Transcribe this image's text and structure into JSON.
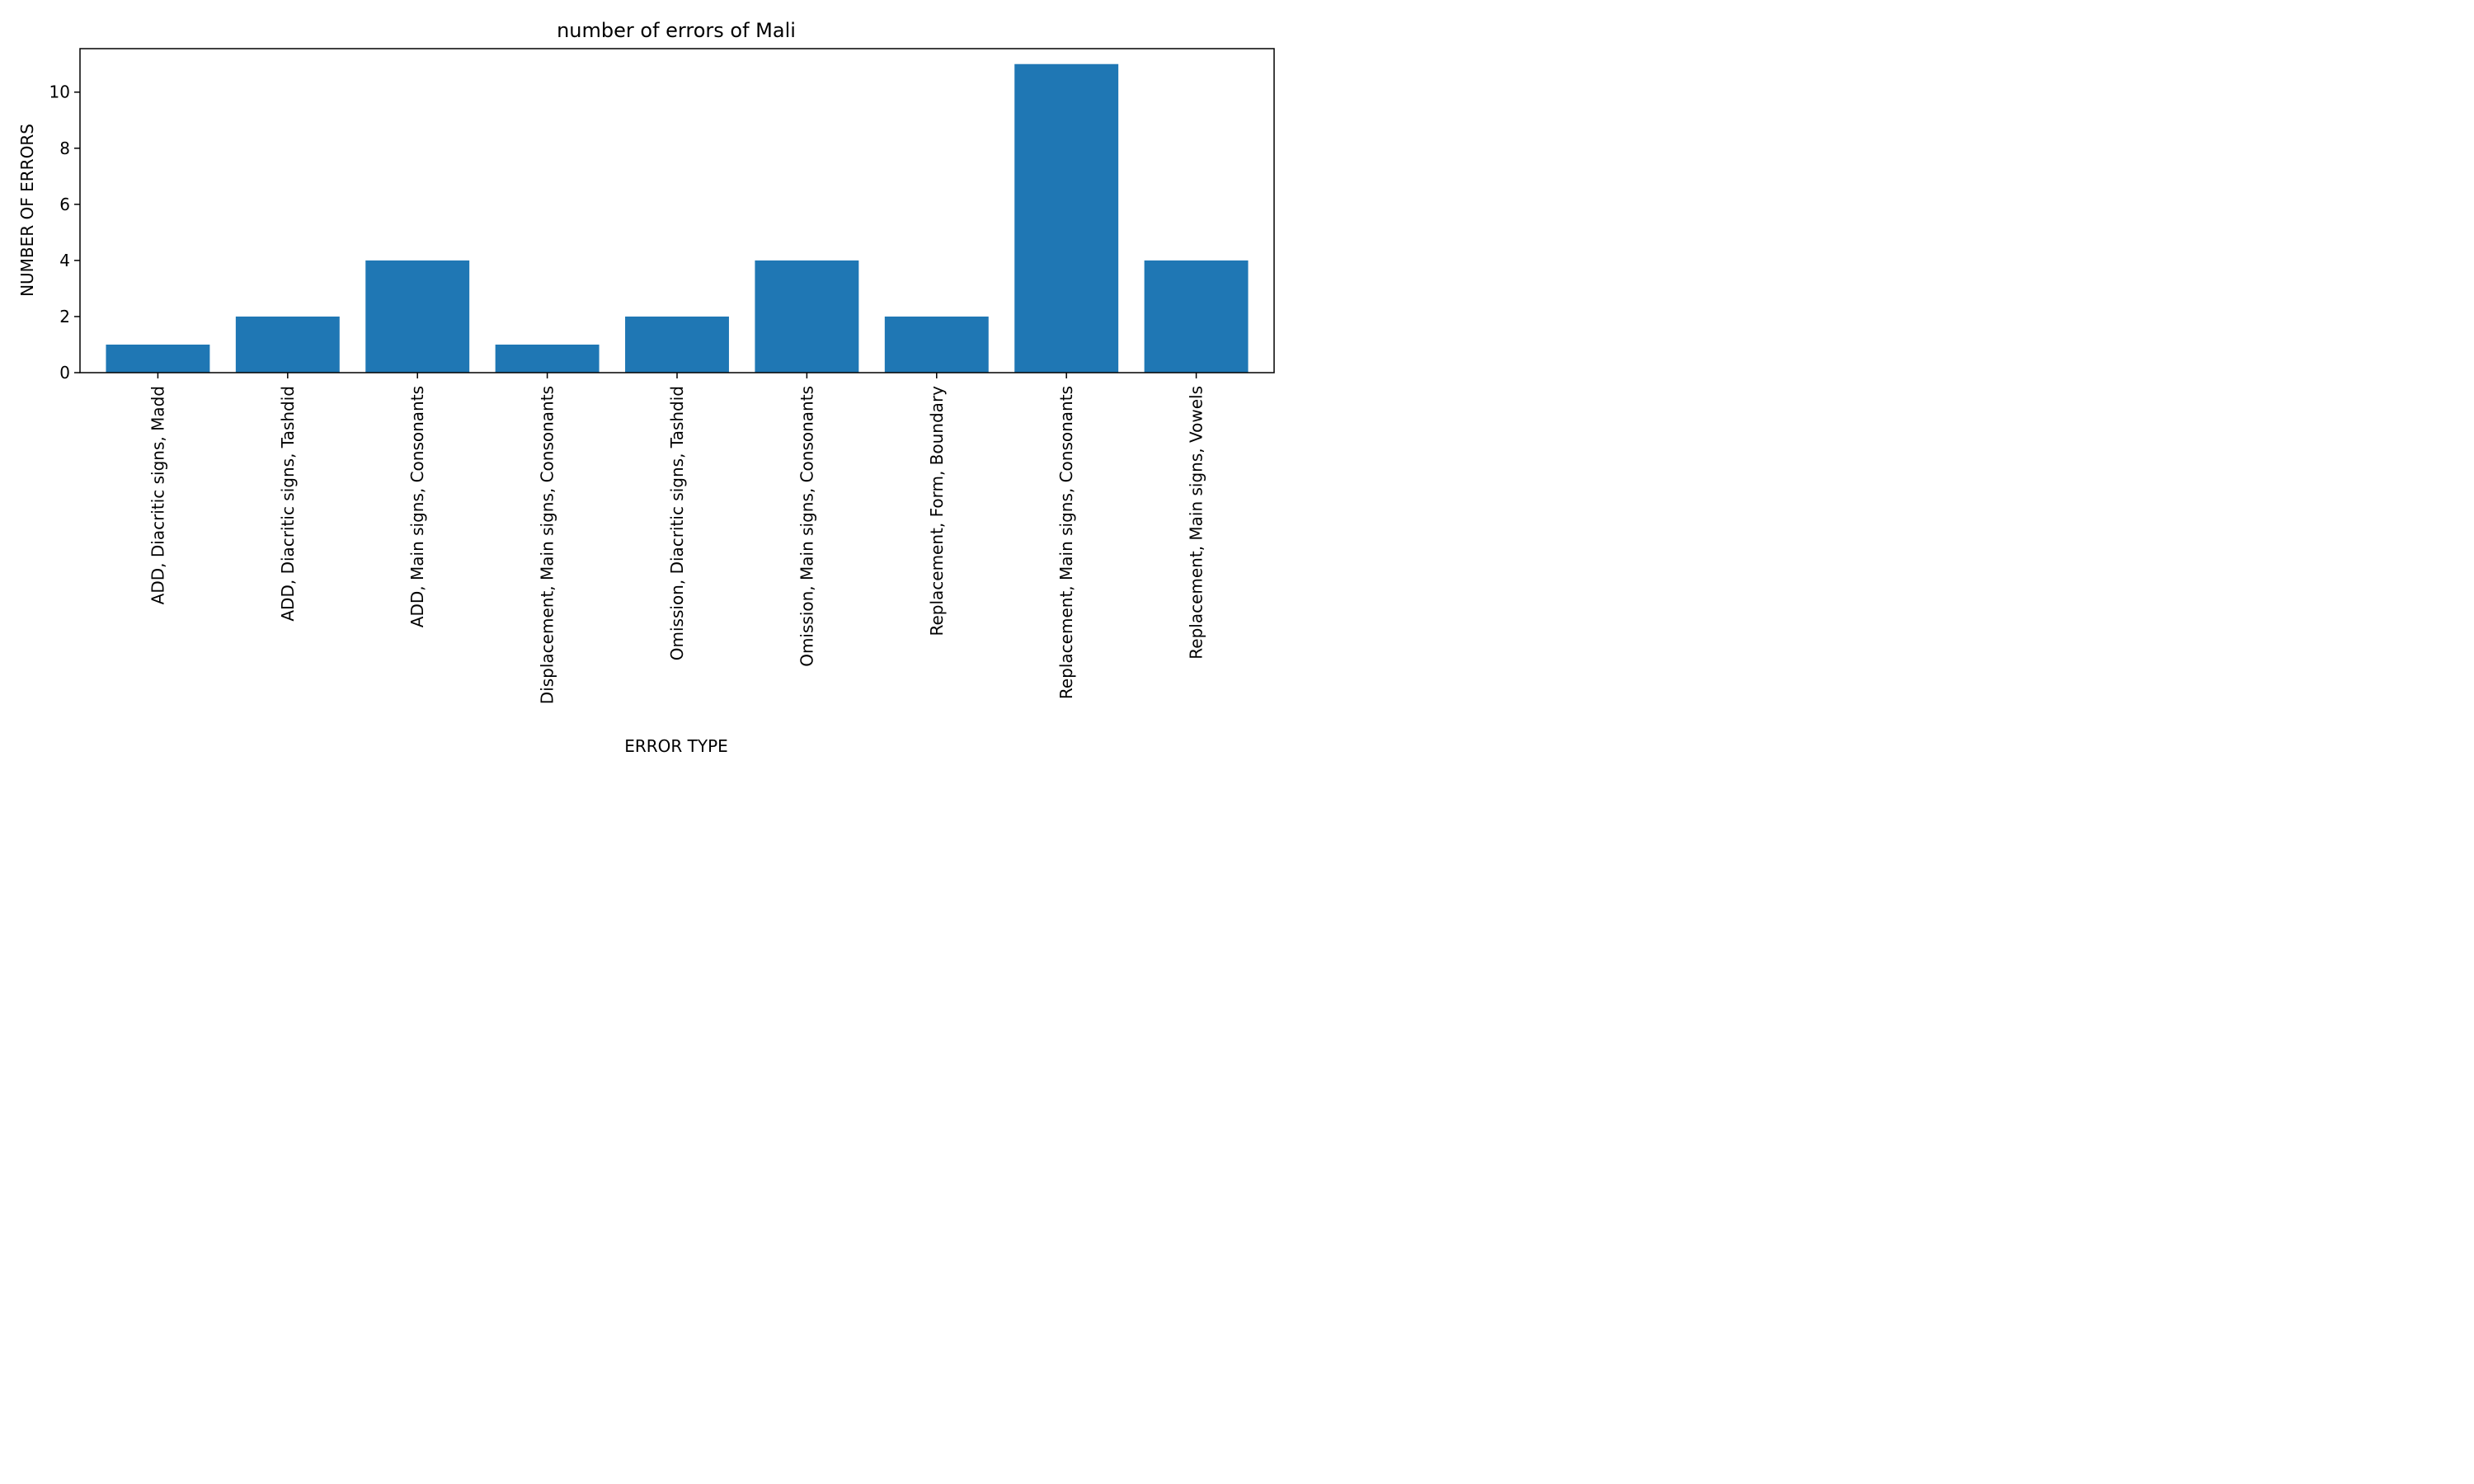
{
  "chart_data": {
    "type": "bar",
    "title": "number of errors of Mali",
    "xlabel": "ERROR TYPE",
    "ylabel": "NUMBER OF ERRORS",
    "categories": [
      "ADD, Diacritic signs, Madd",
      "ADD, Diacritic signs, Tashdid",
      "ADD, Main signs, Consonants",
      "Displacement, Main signs, Consonants",
      "Omission, Diacritic signs, Tashdid",
      "Omission, Main signs, Consonants",
      "Replacement, Form, Boundary",
      "Replacement, Main signs, Consonants",
      "Replacement, Main signs, Vowels"
    ],
    "values": [
      1,
      2,
      4,
      1,
      2,
      4,
      2,
      11,
      4
    ],
    "ylim": [
      0,
      11.55
    ],
    "yticks": [
      0,
      2,
      4,
      6,
      8,
      10
    ],
    "grid": false,
    "legend": "none",
    "colors": {
      "bar": "#1f77b4",
      "axis": "#000000",
      "background": "#ffffff"
    }
  }
}
